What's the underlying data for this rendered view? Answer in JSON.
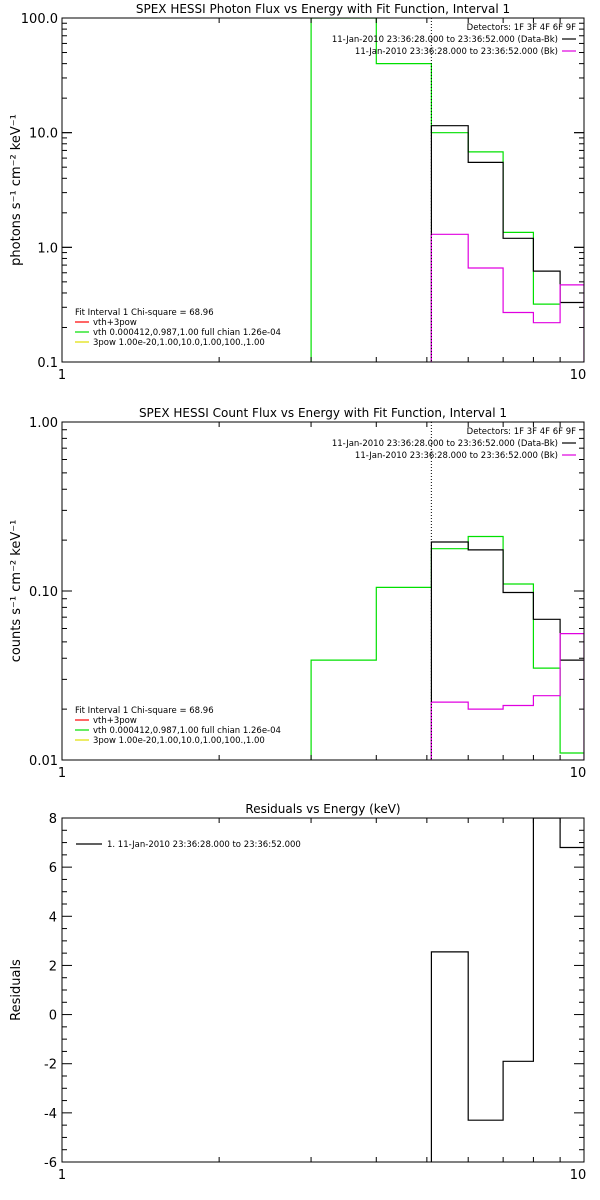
{
  "chart_data": [
    {
      "type": "line",
      "title": "SPEX HESSI Photon Flux vs Energy with Fit Function, Interval 1",
      "ylabel": "photons s⁻¹ cm⁻² keV⁻¹",
      "xscale": "log",
      "yscale": "log",
      "xlim": [
        1,
        10
      ],
      "ylim": [
        0.1,
        100
      ],
      "xticks": [
        "1",
        "10"
      ],
      "yticks": [
        "0.1",
        "1.0",
        "10.0",
        "100.0"
      ],
      "legend_top": [
        "Detectors: 1F 3F 4F 6F 9F",
        "11-Jan-2010 23:36:28.000 to 23:36:52.000 (Data-Bk)",
        "11-Jan-2010 23:36:28.000 to 23:36:52.000 (Bk)"
      ],
      "legend_bottom": [
        "Fit Interval 1    Chi-square = 68.96",
        "vth+3pow",
        "vth 0.000412,0.987,1.00  full chian 1.26e-04",
        "3pow 1.00e-20,1.00,10.0,1.00,100.,1.00"
      ],
      "colors": {
        "data": "#000000",
        "bk": "#e000e0",
        "fit": "#ff0000",
        "vth": "#00e000",
        "pow": "#e0e000"
      },
      "vline": 5.1,
      "series": [
        {
          "name": "vth",
          "x": [
            3,
            3,
            4,
            4,
            5.1,
            5.1,
            6,
            6,
            7,
            7,
            8,
            8,
            9
          ],
          "y": [
            0.1,
            100,
            100,
            40,
            40,
            10,
            10,
            6.8,
            6.8,
            1.35,
            1.35,
            0.32,
            0.32
          ]
        },
        {
          "name": "Data-Bk",
          "x": [
            5.1,
            5.1,
            6,
            6,
            7,
            7,
            8,
            8,
            9,
            9,
            10
          ],
          "y": [
            0.1,
            11.5,
            11.5,
            5.5,
            5.5,
            1.2,
            1.2,
            0.62,
            0.62,
            0.33,
            0.33
          ]
        },
        {
          "name": "Bk",
          "x": [
            5.1,
            5.1,
            6,
            6,
            7,
            7,
            8,
            8,
            9,
            9,
            10,
            10
          ],
          "y": [
            0.1,
            1.3,
            1.3,
            0.66,
            0.66,
            0.27,
            0.27,
            0.22,
            0.22,
            0.47,
            0.47,
            0.1
          ]
        }
      ]
    },
    {
      "type": "line",
      "title": "SPEX HESSI Count Flux vs Energy with Fit Function, Interval 1",
      "ylabel": "counts s⁻¹ cm⁻² keV⁻¹",
      "xscale": "log",
      "yscale": "log",
      "xlim": [
        1,
        10
      ],
      "ylim": [
        0.01,
        1
      ],
      "xticks": [
        "1",
        "10"
      ],
      "yticks": [
        "0.01",
        "0.10",
        "1.00"
      ],
      "legend_top": [
        "Detectors: 1F 3F 4F 6F 9F",
        "11-Jan-2010 23:36:28.000 to 23:36:52.000 (Data-Bk)",
        "11-Jan-2010 23:36:28.000 to 23:36:52.000 (Bk)"
      ],
      "legend_bottom": [
        "Fit Interval 1    Chi-square = 68.96",
        "vth+3pow",
        "vth 0.000412,0.987,1.00  full chian 1.26e-04",
        "3pow 1.00e-20,1.00,10.0,1.00,100.,1.00"
      ],
      "vline": 5.1,
      "series": [
        {
          "name": "vth",
          "x": [
            3,
            3,
            4,
            4,
            5.1,
            5.1,
            6,
            6,
            7,
            7,
            8,
            8,
            9,
            9,
            10
          ],
          "y": [
            0.01,
            0.039,
            0.039,
            0.105,
            0.105,
            0.178,
            0.178,
            0.21,
            0.21,
            0.11,
            0.11,
            0.035,
            0.035,
            0.011,
            0.011
          ]
        },
        {
          "name": "Data-Bk",
          "x": [
            5.1,
            5.1,
            6,
            6,
            7,
            7,
            8,
            8,
            9,
            9,
            10
          ],
          "y": [
            0.01,
            0.195,
            0.195,
            0.175,
            0.175,
            0.098,
            0.098,
            0.068,
            0.068,
            0.039,
            0.039
          ]
        },
        {
          "name": "Bk",
          "x": [
            5.1,
            5.1,
            6,
            6,
            7,
            7,
            8,
            8,
            9,
            9,
            10,
            10
          ],
          "y": [
            0.01,
            0.022,
            0.022,
            0.02,
            0.02,
            0.021,
            0.021,
            0.024,
            0.024,
            0.056,
            0.056,
            0.01
          ]
        }
      ]
    },
    {
      "type": "line",
      "title": "Residuals vs Energy (keV)",
      "ylabel": "Residuals",
      "xscale": "log",
      "yscale": "linear",
      "xlim": [
        1,
        10
      ],
      "ylim": [
        -6,
        8
      ],
      "xticks": [
        "1",
        "10"
      ],
      "yticks": [
        "-6",
        "-4",
        "-2",
        "0",
        "2",
        "4",
        "6",
        "8"
      ],
      "legend": "1. 11-Jan-2010 23:36:28.000 to 23:36:52.000",
      "series": [
        {
          "name": "1",
          "x": [
            5.1,
            5.1,
            6,
            6,
            7,
            7,
            8,
            8,
            9,
            9,
            10
          ],
          "y": [
            -6,
            2.55,
            2.55,
            -4.3,
            -4.3,
            -1.9,
            -1.9,
            8,
            8,
            6.8,
            6.8
          ]
        }
      ]
    }
  ]
}
